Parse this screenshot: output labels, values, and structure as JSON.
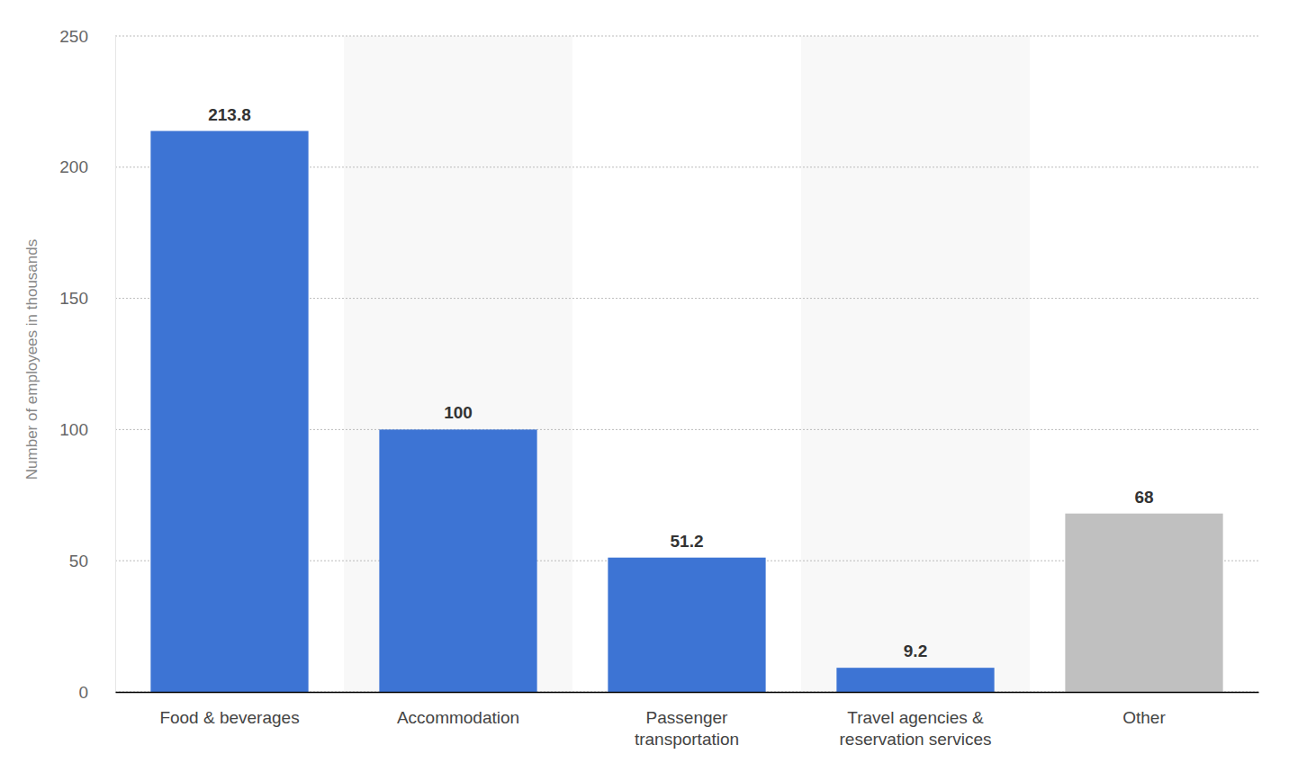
{
  "chart_data": {
    "type": "bar",
    "y_label": "Number of employees in thousands",
    "categories": [
      "Food & beverages",
      "Accommodation",
      "Passenger transportation",
      "Travel agencies & reservation services",
      "Other"
    ],
    "values": [
      213.8,
      100,
      51.2,
      9.2,
      68
    ],
    "colors": [
      "#3d74d4",
      "#3d74d4",
      "#3d74d4",
      "#3d74d4",
      "#c0c0c0"
    ],
    "ylim": [
      0,
      250
    ],
    "yticks": [
      0,
      50,
      100,
      150,
      200,
      250
    ],
    "grid": true,
    "data_labels": true
  }
}
